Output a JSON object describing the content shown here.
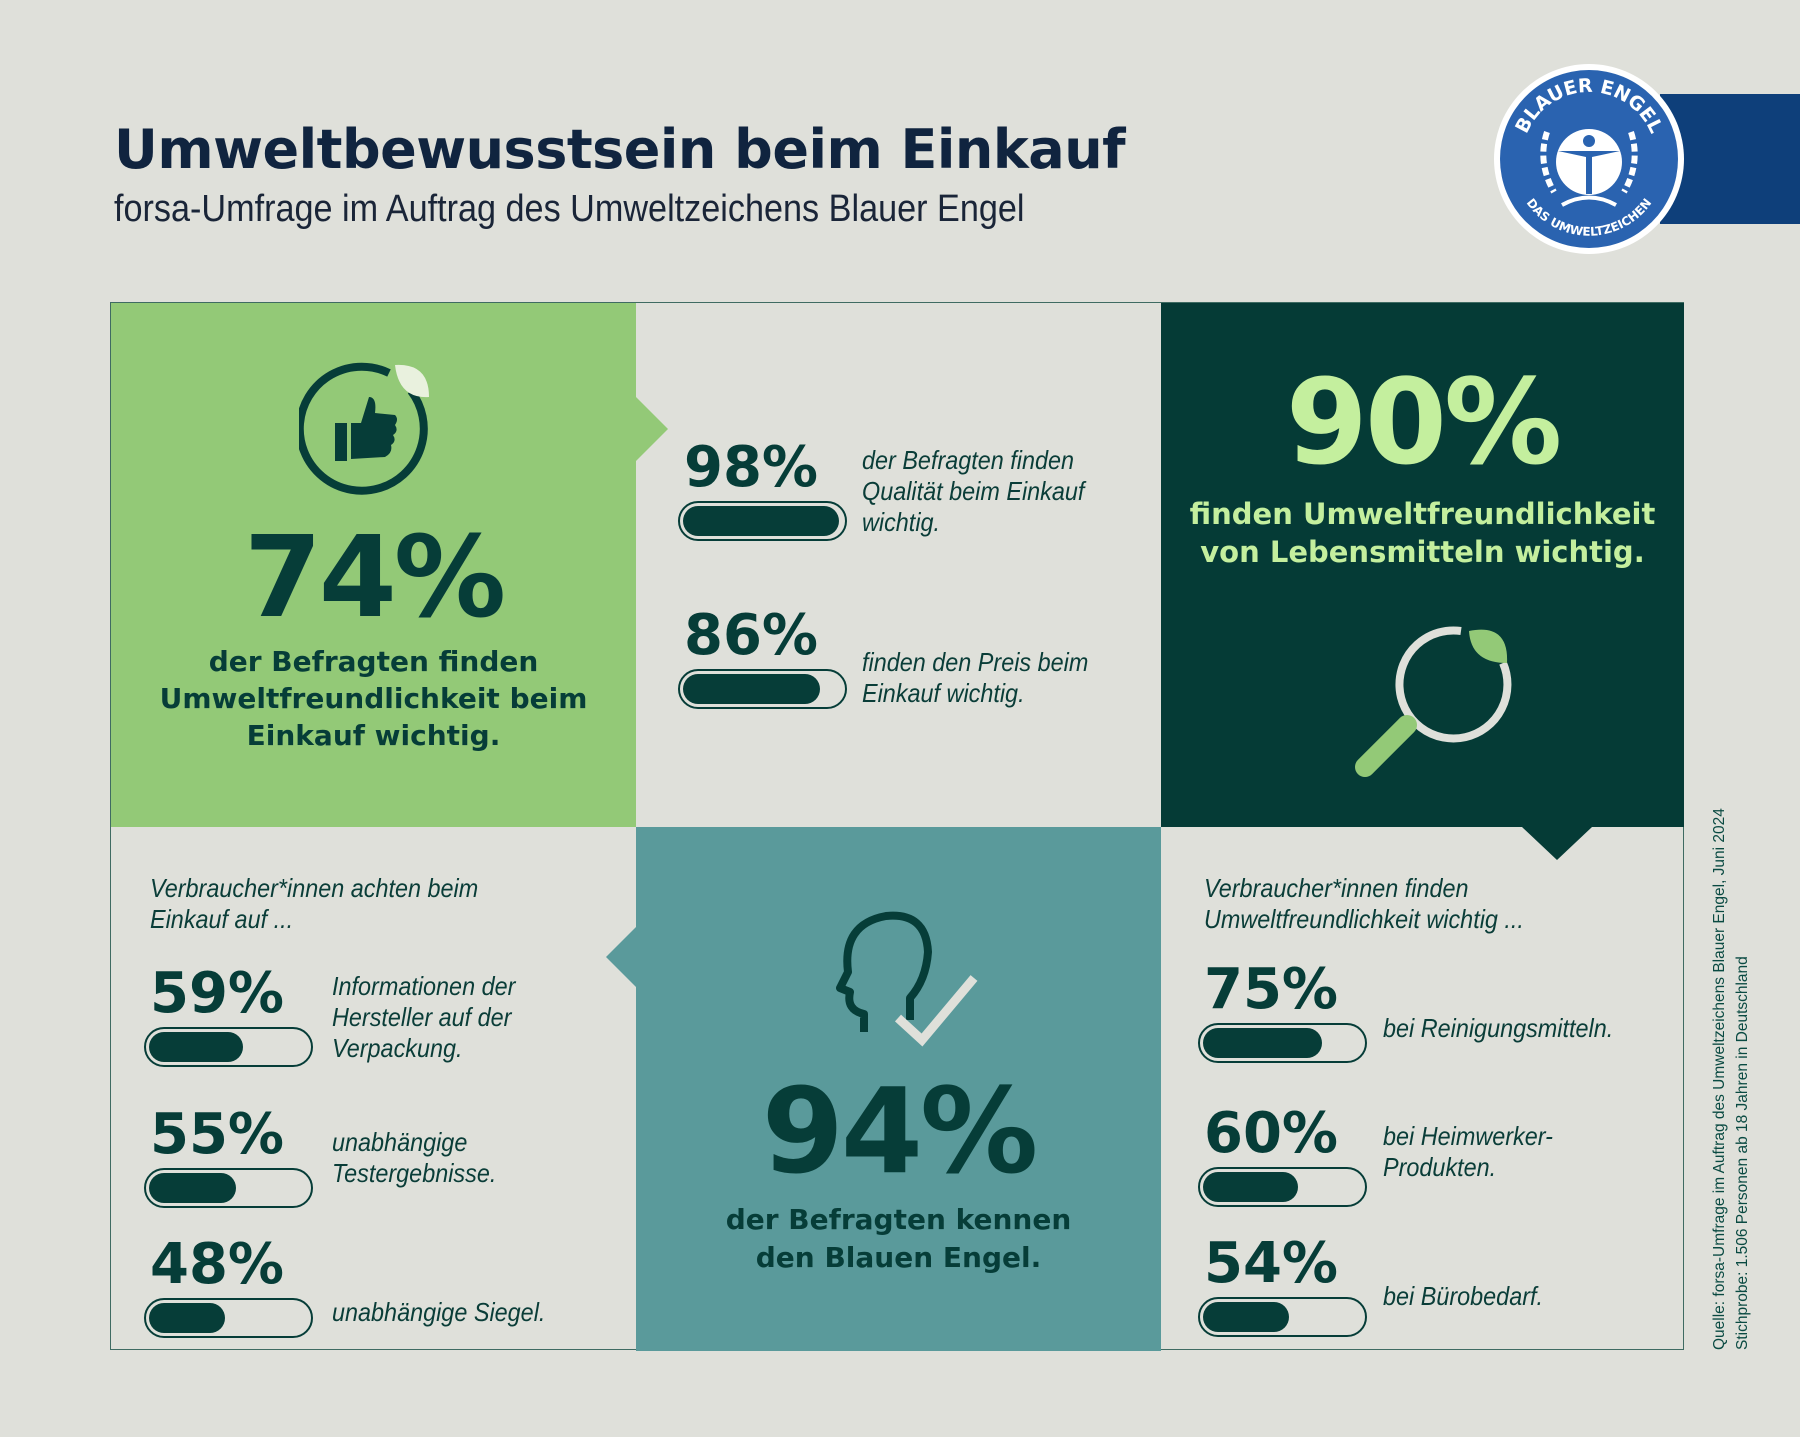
{
  "header": {
    "title": "Umweltbewusstsein beim Einkauf",
    "subtitle": "forsa-Umfrage im Auftrag des Umweltzeichens Blauer Engel"
  },
  "logo": {
    "text_top": "BLAUER ENGEL",
    "text_bottom": "DAS UMWELTZEICHEN",
    "color": "#2a63b0"
  },
  "colors": {
    "light_green": "#93c977",
    "dark_green": "#053b36",
    "teal": "#5a9a9b",
    "lime": "#c4ef9e",
    "background": "#dfe0da"
  },
  "panel_74": {
    "icon": "thumbs-up-leaf-icon",
    "value": "74%",
    "text": "der Befragten finden\nUmweltfreundlichkeit beim\nEinkauf wichtig."
  },
  "panel_quality": {
    "items": [
      {
        "value": "98%",
        "percent": 98,
        "text": "der Befragten finden\nQualität beim Einkauf\nwichtig."
      },
      {
        "value": "86%",
        "percent": 86,
        "text": "finden den Preis beim\nEinkauf wichtig."
      }
    ]
  },
  "panel_90": {
    "value": "90%",
    "text": "finden Umweltfreundlichkeit\nvon Lebensmitteln wichtig.",
    "icon": "magnifier-leaf-icon"
  },
  "panel_attention": {
    "heading": "Verbraucher*innen achten beim\nEinkauf auf ...",
    "items": [
      {
        "value": "59%",
        "percent": 59,
        "text": "Informationen der\nHersteller auf der\nVerpackung."
      },
      {
        "value": "55%",
        "percent": 55,
        "text": "unabhängige\nTestergebnisse."
      },
      {
        "value": "48%",
        "percent": 48,
        "text": "unabhängige Siegel."
      }
    ]
  },
  "panel_94": {
    "icon": "head-check-icon",
    "value": "94%",
    "text": "der Befragten kennen\nden Blauen Engel."
  },
  "panel_products": {
    "heading": "Verbraucher*innen finden\nUmweltfreundlichkeit wichtig ...",
    "items": [
      {
        "value": "75%",
        "percent": 75,
        "text": "bei Reinigungsmitteln."
      },
      {
        "value": "60%",
        "percent": 60,
        "text": "bei Heimwerker-\nProdukten."
      },
      {
        "value": "54%",
        "percent": 54,
        "text": "bei Bürobedarf."
      }
    ]
  },
  "source": {
    "line1": "Quelle: forsa-Umfrage im Auftrag des Umweltzeichens Blauer Engel, Juni 2024",
    "line2": "Stichprobe: 1.506 Personen ab 18 Jahren in Deutschland"
  }
}
